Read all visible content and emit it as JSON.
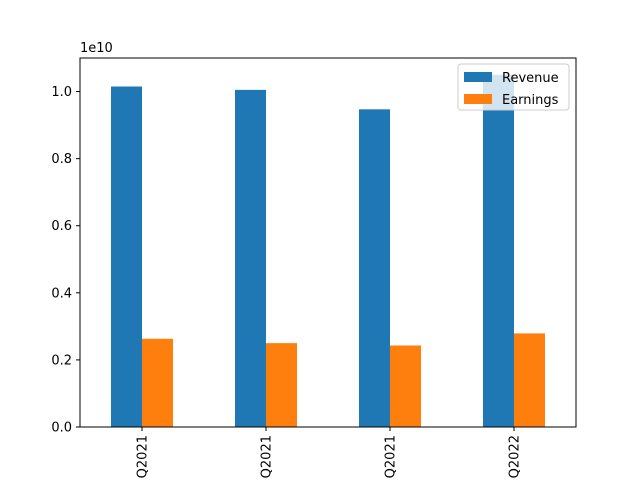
{
  "chart_data": {
    "type": "bar",
    "title": "",
    "xlabel": "",
    "ylabel": "",
    "scale_label": "1e10",
    "categories": [
      "Q2021",
      "Q2021",
      "Q2021",
      "Q2022"
    ],
    "series": [
      {
        "name": "Revenue",
        "color": "#1f77b4",
        "values": [
          10150000000.0,
          10050000000.0,
          9470000000.0,
          10500000000.0
        ]
      },
      {
        "name": "Earnings",
        "color": "#ff7f0e",
        "values": [
          2630000000.0,
          2500000000.0,
          2430000000.0,
          2790000000.0
        ]
      }
    ],
    "ylim": [
      0,
      11000000000.0
    ],
    "yticks": [
      0,
      2000000000.0,
      4000000000.0,
      6000000000.0,
      8000000000.0,
      10000000000.0
    ],
    "ytick_labels": [
      "0.0",
      "0.2",
      "0.4",
      "0.6",
      "0.8",
      "1.0"
    ],
    "grid": false,
    "legend_position": "top-right"
  }
}
